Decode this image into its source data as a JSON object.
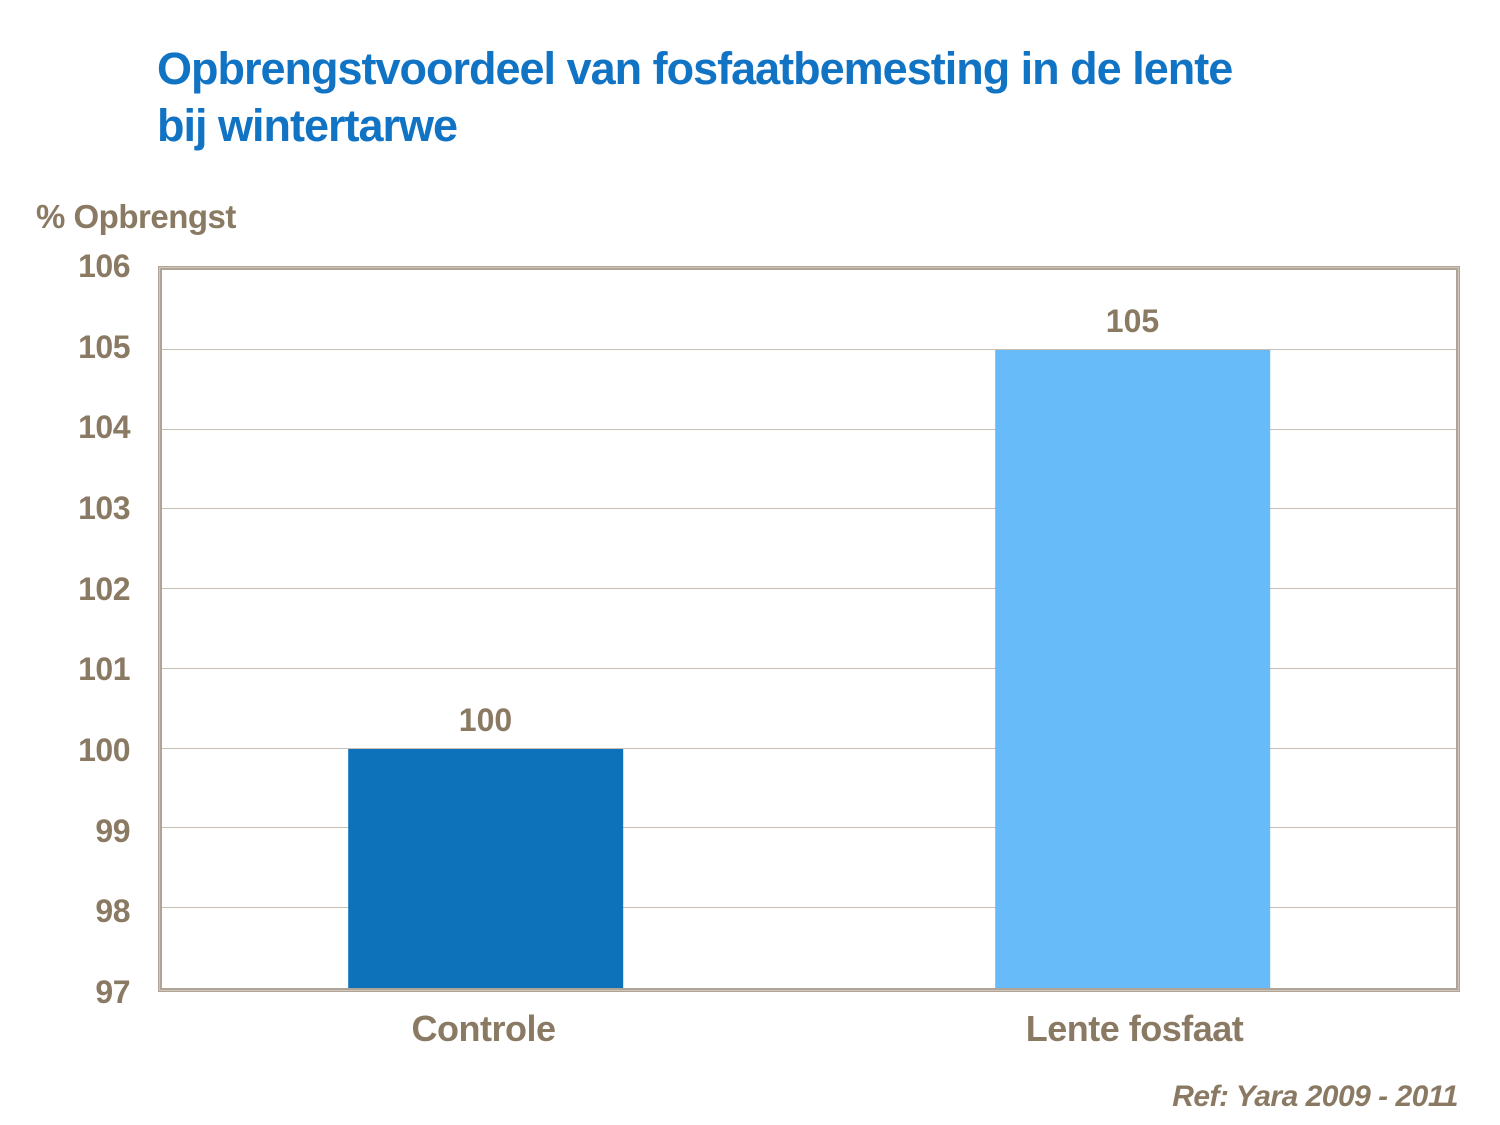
{
  "chart_data": {
    "type": "bar",
    "title": "Opbrengstvoordeel van fosfaatbemesting in de lente bij wintertarwe",
    "ylabel": "% Opbrengst",
    "categories": [
      "Controle",
      "Lente fosfaat"
    ],
    "values": [
      100,
      105
    ],
    "bar_colors": [
      "#0d72ba",
      "#66bbf8"
    ],
    "ylim": [
      97,
      106
    ],
    "yticks": [
      97,
      98,
      99,
      100,
      101,
      102,
      103,
      104,
      105,
      106
    ],
    "grid": "horizontal",
    "legend": "none",
    "reference": "Ref: Yara 2009 - 2011"
  },
  "colors": {
    "title": "#1173c4",
    "axis_text": "#8a7a63",
    "plot_border": "#b0a496",
    "plot_border_light": "#cfc6bb",
    "gridline": "#c8bfb4",
    "background": "#ffffff"
  }
}
